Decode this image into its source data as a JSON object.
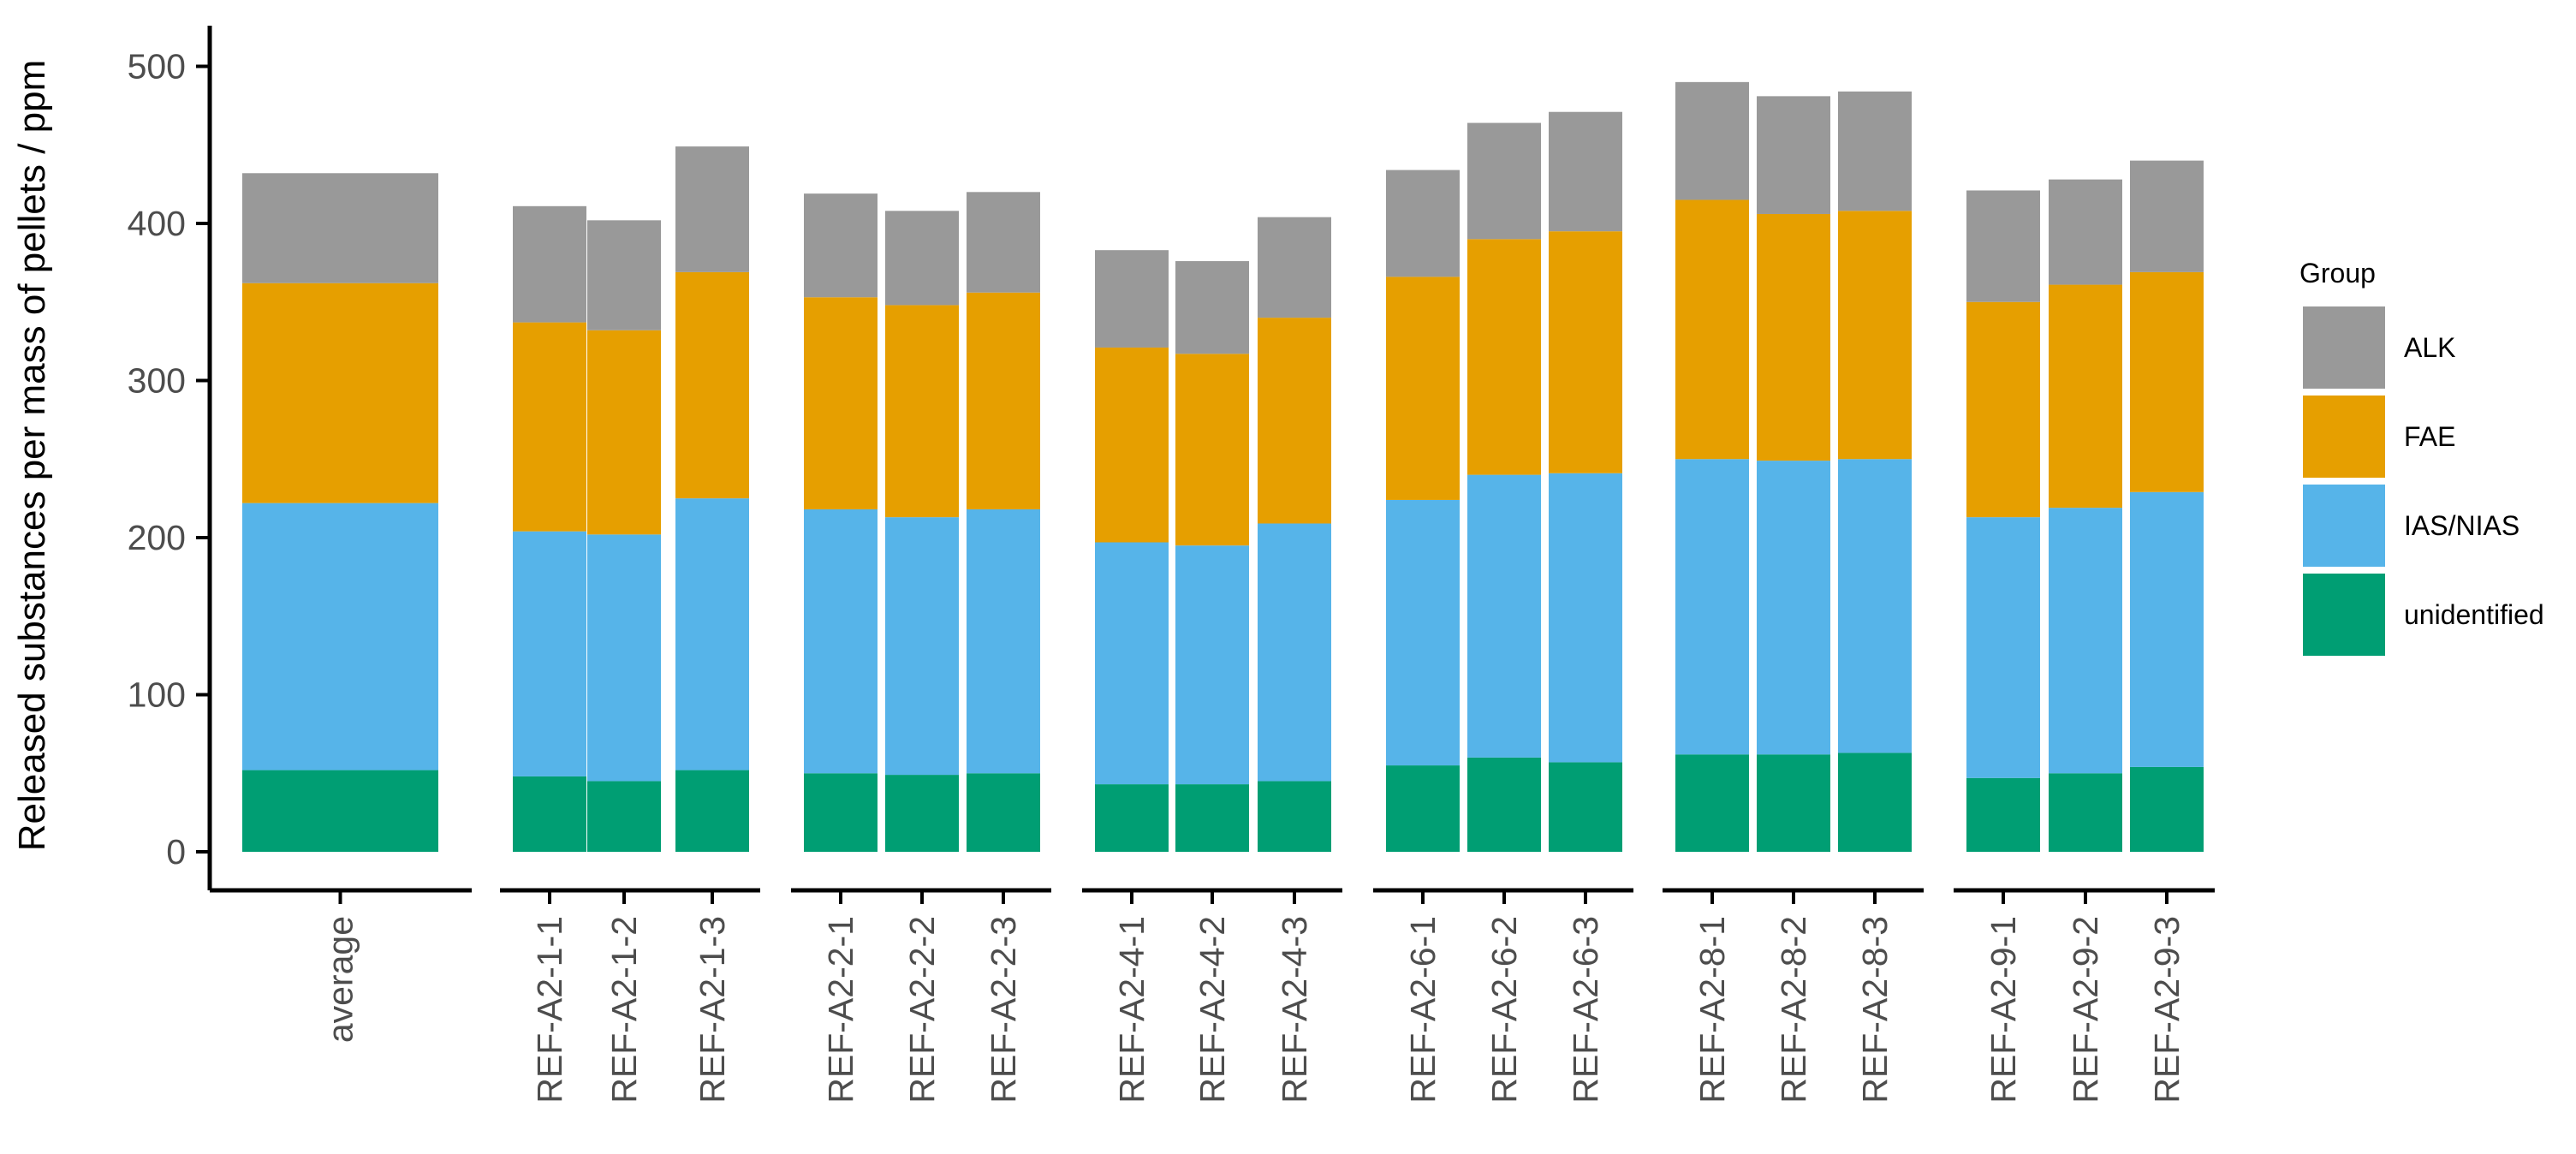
{
  "chart_data": {
    "type": "bar",
    "stacked": true,
    "title": "",
    "xlabel": "",
    "ylabel": "Released substances per mass of pellets / ppm",
    "ylim": [
      0,
      525
    ],
    "yticks": [
      0,
      100,
      200,
      300,
      400,
      500
    ],
    "legend": {
      "title": "Group",
      "position": "right"
    },
    "groups": [
      {
        "name": "average",
        "categories": [
          "average"
        ]
      },
      {
        "name": "REF-A2-1",
        "categories": [
          "REF-A2-1-1",
          "REF-A2-1-2",
          "REF-A2-1-3"
        ]
      },
      {
        "name": "REF-A2-2",
        "categories": [
          "REF-A2-2-1",
          "REF-A2-2-2",
          "REF-A2-2-3"
        ]
      },
      {
        "name": "REF-A2-4",
        "categories": [
          "REF-A2-4-1",
          "REF-A2-4-2",
          "REF-A2-4-3"
        ]
      },
      {
        "name": "REF-A2-6",
        "categories": [
          "REF-A2-6-1",
          "REF-A2-6-2",
          "REF-A2-6-3"
        ]
      },
      {
        "name": "REF-A2-8",
        "categories": [
          "REF-A2-8-1",
          "REF-A2-8-2",
          "REF-A2-8-3"
        ]
      },
      {
        "name": "REF-A2-9",
        "categories": [
          "REF-A2-9-1",
          "REF-A2-9-2",
          "REF-A2-9-3"
        ]
      }
    ],
    "categories": [
      "average",
      "REF-A2-1-1",
      "REF-A2-1-2",
      "REF-A2-1-3",
      "REF-A2-2-1",
      "REF-A2-2-2",
      "REF-A2-2-3",
      "REF-A2-4-1",
      "REF-A2-4-2",
      "REF-A2-4-3",
      "REF-A2-6-1",
      "REF-A2-6-2",
      "REF-A2-6-3",
      "REF-A2-8-1",
      "REF-A2-8-2",
      "REF-A2-8-3",
      "REF-A2-9-1",
      "REF-A2-9-2",
      "REF-A2-9-3"
    ],
    "series": [
      {
        "name": "unidentified",
        "color": "#009E73",
        "values": [
          52,
          48,
          45,
          52,
          50,
          49,
          50,
          43,
          43,
          45,
          55,
          60,
          57,
          62,
          62,
          63,
          47,
          50,
          54
        ]
      },
      {
        "name": "IAS/NIAS",
        "color": "#56B4E9",
        "values": [
          170,
          156,
          157,
          173,
          168,
          164,
          168,
          154,
          152,
          164,
          169,
          180,
          184,
          188,
          187,
          187,
          166,
          169,
          175
        ]
      },
      {
        "name": "FAE",
        "color": "#E69F00",
        "values": [
          140,
          133,
          130,
          144,
          135,
          135,
          138,
          124,
          122,
          131,
          142,
          150,
          154,
          165,
          157,
          158,
          137,
          142,
          140
        ]
      },
      {
        "name": "ALK",
        "color": "#999999",
        "values": [
          70,
          74,
          70,
          80,
          66,
          60,
          64,
          62,
          59,
          64,
          68,
          74,
          76,
          75,
          75,
          76,
          71,
          67,
          71
        ]
      }
    ]
  }
}
